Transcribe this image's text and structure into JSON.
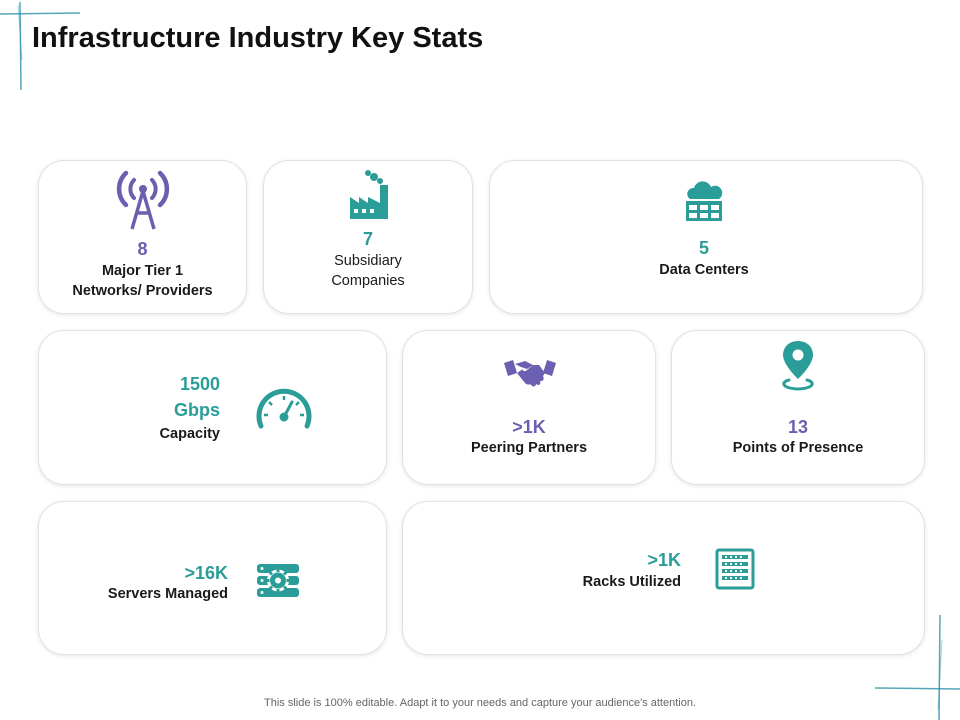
{
  "title": "Infrastructure Industry Key Stats",
  "colors": {
    "purple": "#6b5fb0",
    "teal": "#2a9d99",
    "deco": "#2b8fa8"
  },
  "stats": {
    "networks": {
      "value": "8",
      "label_line1": "Major Tier 1",
      "label_line2": "Networks/ Providers",
      "icon": "antenna-tower-icon"
    },
    "subsidiaries": {
      "value": "7",
      "label_line1": "Subsidiary",
      "label_line2": "Companies",
      "icon": "factory-icon"
    },
    "datacenters": {
      "value": "5",
      "label": "Data Centers",
      "icon": "cloud-server-icon"
    },
    "capacity": {
      "value_line1": "1500",
      "value_line2": "Gbps",
      "label": "Capacity",
      "icon": "speedometer-icon"
    },
    "peering": {
      "value": ">1K",
      "label": "Peering Partners",
      "icon": "handshake-icon"
    },
    "presence": {
      "value": "13",
      "label": "Points of Presence",
      "icon": "location-pin-icon"
    },
    "servers": {
      "value": ">16K",
      "label": "Servers Managed",
      "icon": "server-gear-icon"
    },
    "racks": {
      "value": ">1K",
      "label": "Racks Utilized",
      "icon": "server-rack-icon"
    }
  },
  "footer": "This slide is 100% editable. Adapt it to your needs and capture your audience's attention."
}
